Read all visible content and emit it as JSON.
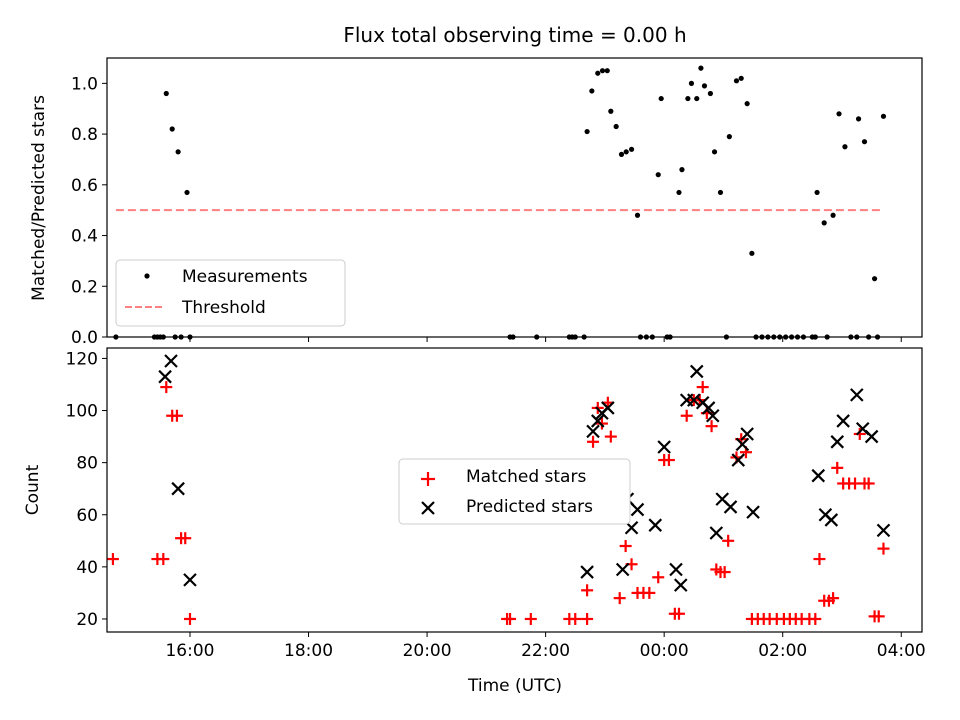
{
  "chart_data": [
    {
      "type": "scatter",
      "title": "Flux total observing time = 0.00 h",
      "xlabel": "",
      "ylabel": "Matched/Predicted stars",
      "x_unit": "hours after 00:00 UTC (plotted on a clock-time axis)",
      "xlim": [
        -9.4,
        4.35
      ],
      "ylim": [
        0,
        1.1
      ],
      "x_tick_labels": [
        "16:00",
        "18:00",
        "20:00",
        "22:00",
        "00:00",
        "02:00",
        "04:00"
      ],
      "x_ticks": [
        -8,
        -6,
        -4,
        -2,
        0,
        2,
        4
      ],
      "y_ticks": [
        0.0,
        0.2,
        0.4,
        0.6,
        0.8,
        1.0
      ],
      "y_tick_labels": [
        "0.0",
        "0.2",
        "0.4",
        "0.6",
        "0.8",
        "1.0"
      ],
      "grid": false,
      "legend_position": "lower-left",
      "series": [
        {
          "name": "Measurements",
          "marker": "dot",
          "color": "#000000",
          "points": [
            [
              -9.25,
              0.0
            ],
            [
              -8.6,
              0.0
            ],
            [
              -8.55,
              0.0
            ],
            [
              -8.5,
              0.0
            ],
            [
              -8.45,
              0.0
            ],
            [
              -8.4,
              0.96
            ],
            [
              -8.3,
              0.82
            ],
            [
              -8.25,
              0.0
            ],
            [
              -8.2,
              0.73
            ],
            [
              -8.15,
              0.0
            ],
            [
              -8.05,
              0.57
            ],
            [
              -8.0,
              0.0
            ],
            [
              -2.6,
              0.0
            ],
            [
              -2.55,
              0.0
            ],
            [
              -2.15,
              0.0
            ],
            [
              -1.6,
              0.0
            ],
            [
              -1.55,
              0.0
            ],
            [
              -1.5,
              0.0
            ],
            [
              -1.35,
              0.0
            ],
            [
              -1.3,
              0.81
            ],
            [
              -1.22,
              0.97
            ],
            [
              -1.12,
              1.04
            ],
            [
              -1.04,
              1.05
            ],
            [
              -0.96,
              1.05
            ],
            [
              -0.9,
              0.89
            ],
            [
              -0.81,
              0.83
            ],
            [
              -0.72,
              0.72
            ],
            [
              -0.64,
              0.73
            ],
            [
              -0.55,
              0.74
            ],
            [
              -0.45,
              0.48
            ],
            [
              -0.4,
              0.0
            ],
            [
              -0.3,
              0.0
            ],
            [
              -0.2,
              0.0
            ],
            [
              -0.1,
              0.64
            ],
            [
              -0.05,
              0.94
            ],
            [
              0.05,
              0.0
            ],
            [
              0.1,
              0.0
            ],
            [
              0.25,
              0.57
            ],
            [
              0.3,
              0.66
            ],
            [
              0.4,
              0.94
            ],
            [
              0.46,
              1.0
            ],
            [
              0.55,
              0.94
            ],
            [
              0.62,
              1.06
            ],
            [
              0.68,
              0.99
            ],
            [
              0.78,
              0.96
            ],
            [
              0.85,
              0.73
            ],
            [
              0.95,
              0.57
            ],
            [
              1.05,
              0.0
            ],
            [
              1.1,
              0.79
            ],
            [
              1.22,
              1.01
            ],
            [
              1.3,
              1.02
            ],
            [
              1.4,
              0.92
            ],
            [
              1.48,
              0.33
            ],
            [
              1.55,
              0.0
            ],
            [
              1.65,
              0.0
            ],
            [
              1.75,
              0.0
            ],
            [
              1.85,
              0.0
            ],
            [
              1.95,
              0.0
            ],
            [
              2.05,
              0.0
            ],
            [
              2.15,
              0.0
            ],
            [
              2.25,
              0.0
            ],
            [
              2.35,
              0.0
            ],
            [
              2.5,
              0.0
            ],
            [
              2.55,
              0.0
            ],
            [
              2.58,
              0.57
            ],
            [
              2.7,
              0.45
            ],
            [
              2.75,
              0.0
            ],
            [
              2.85,
              0.48
            ],
            [
              2.95,
              0.88
            ],
            [
              3.05,
              0.75
            ],
            [
              3.15,
              0.0
            ],
            [
              3.25,
              0.0
            ],
            [
              3.28,
              0.86
            ],
            [
              3.38,
              0.77
            ],
            [
              3.45,
              0.0
            ],
            [
              3.55,
              0.23
            ],
            [
              3.6,
              0.0
            ],
            [
              3.7,
              0.87
            ]
          ]
        },
        {
          "name": "Threshold",
          "marker": "dashed-line",
          "color": "#ff8080",
          "points": [
            [
              -9.25,
              0.5
            ],
            [
              3.7,
              0.5
            ]
          ]
        }
      ]
    },
    {
      "type": "scatter",
      "title": "",
      "xlabel": "Time (UTC)",
      "ylabel": "Count",
      "x_unit": "hours after 00:00 UTC (plotted on a clock-time axis)",
      "xlim": [
        -9.4,
        4.35
      ],
      "ylim": [
        15,
        124
      ],
      "x_tick_labels": [
        "16:00",
        "18:00",
        "20:00",
        "22:00",
        "00:00",
        "02:00",
        "04:00"
      ],
      "x_ticks": [
        -8,
        -6,
        -4,
        -2,
        0,
        2,
        4
      ],
      "y_ticks": [
        20,
        40,
        60,
        80,
        100,
        120
      ],
      "y_tick_labels": [
        "20",
        "40",
        "60",
        "80",
        "100",
        "120"
      ],
      "grid": false,
      "legend_position": "center",
      "series": [
        {
          "name": "Matched stars",
          "marker": "plus",
          "color": "#ff0000",
          "points": [
            [
              -9.3,
              43
            ],
            [
              -8.55,
              43
            ],
            [
              -8.45,
              43
            ],
            [
              -8.4,
              109
            ],
            [
              -8.3,
              98
            ],
            [
              -8.22,
              98
            ],
            [
              -8.15,
              51
            ],
            [
              -8.08,
              51
            ],
            [
              -8.0,
              20
            ],
            [
              -2.65,
              20
            ],
            [
              -2.6,
              20
            ],
            [
              -2.25,
              20
            ],
            [
              -1.6,
              20
            ],
            [
              -1.5,
              20
            ],
            [
              -1.3,
              20
            ],
            [
              -1.3,
              31
            ],
            [
              -1.2,
              88
            ],
            [
              -1.12,
              101
            ],
            [
              -1.05,
              95
            ],
            [
              -0.95,
              103
            ],
            [
              -0.9,
              90
            ],
            [
              -0.85,
              63
            ],
            [
              -0.75,
              28
            ],
            [
              -0.65,
              48
            ],
            [
              -0.55,
              41
            ],
            [
              -0.45,
              30
            ],
            [
              -0.35,
              30
            ],
            [
              -0.25,
              30
            ],
            [
              -0.1,
              36
            ],
            [
              0.0,
              81
            ],
            [
              0.08,
              81
            ],
            [
              0.18,
              22
            ],
            [
              0.25,
              22
            ],
            [
              0.38,
              98
            ],
            [
              0.5,
              104
            ],
            [
              0.6,
              104
            ],
            [
              0.65,
              109
            ],
            [
              0.72,
              99
            ],
            [
              0.8,
              94
            ],
            [
              0.88,
              39
            ],
            [
              0.95,
              38
            ],
            [
              1.02,
              38
            ],
            [
              1.08,
              50
            ],
            [
              1.22,
              82
            ],
            [
              1.3,
              89
            ],
            [
              1.38,
              84
            ],
            [
              1.48,
              20
            ],
            [
              1.58,
              20
            ],
            [
              1.68,
              20
            ],
            [
              1.78,
              20
            ],
            [
              1.9,
              20
            ],
            [
              2.02,
              20
            ],
            [
              2.12,
              20
            ],
            [
              2.22,
              20
            ],
            [
              2.32,
              20
            ],
            [
              2.45,
              20
            ],
            [
              2.55,
              20
            ],
            [
              2.62,
              43
            ],
            [
              2.7,
              27
            ],
            [
              2.78,
              27
            ],
            [
              2.85,
              28
            ],
            [
              2.92,
              78
            ],
            [
              3.02,
              72
            ],
            [
              3.12,
              72
            ],
            [
              3.22,
              72
            ],
            [
              3.3,
              91
            ],
            [
              3.38,
              72
            ],
            [
              3.45,
              72
            ],
            [
              3.55,
              21
            ],
            [
              3.62,
              21
            ],
            [
              3.7,
              47
            ]
          ]
        },
        {
          "name": "Predicted stars",
          "marker": "x",
          "color": "#000000",
          "points": [
            [
              -8.42,
              113
            ],
            [
              -8.32,
              119
            ],
            [
              -8.2,
              70
            ],
            [
              -8.0,
              35
            ],
            [
              -1.3,
              38
            ],
            [
              -1.2,
              92
            ],
            [
              -1.12,
              96
            ],
            [
              -1.05,
              99
            ],
            [
              -0.95,
              101
            ],
            [
              -0.8,
              76
            ],
            [
              -0.7,
              39
            ],
            [
              -0.62,
              66
            ],
            [
              -0.55,
              55
            ],
            [
              -0.45,
              62
            ],
            [
              -0.15,
              56
            ],
            [
              0.0,
              86
            ],
            [
              0.2,
              39
            ],
            [
              0.28,
              33
            ],
            [
              0.38,
              104
            ],
            [
              0.5,
              104
            ],
            [
              0.55,
              115
            ],
            [
              0.65,
              103
            ],
            [
              0.75,
              101
            ],
            [
              0.82,
              98
            ],
            [
              0.88,
              53
            ],
            [
              0.98,
              66
            ],
            [
              1.12,
              63
            ],
            [
              1.25,
              81
            ],
            [
              1.32,
              87
            ],
            [
              1.4,
              91
            ],
            [
              1.5,
              61
            ],
            [
              2.6,
              75
            ],
            [
              2.72,
              60
            ],
            [
              2.82,
              58
            ],
            [
              2.92,
              88
            ],
            [
              3.02,
              96
            ],
            [
              3.25,
              106
            ],
            [
              3.35,
              93
            ],
            [
              3.5,
              90
            ],
            [
              3.7,
              54
            ]
          ]
        }
      ]
    }
  ]
}
